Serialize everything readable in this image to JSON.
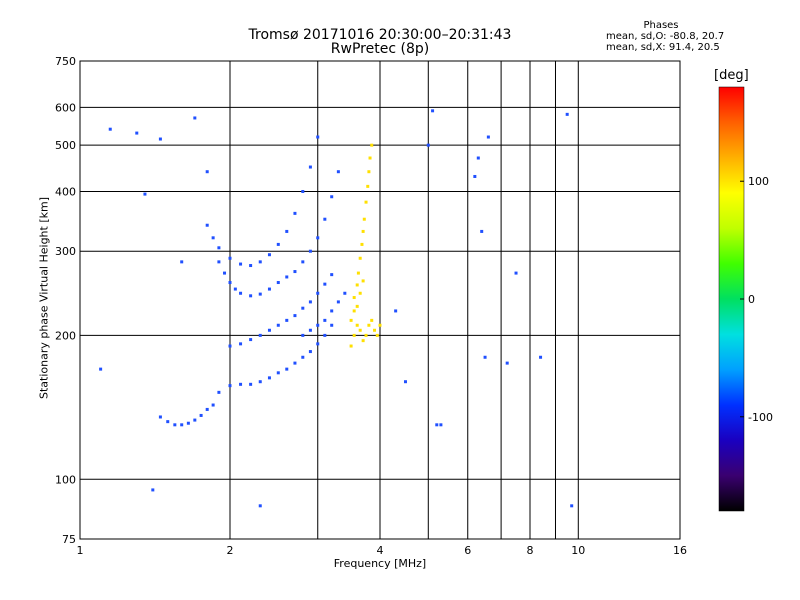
{
  "header": {
    "title": "Tromsø 20171016 20:30:00–20:31:43",
    "subtitle": "RwPretec (8p)"
  },
  "stats": {
    "label": "Phases",
    "line_o": "mean, sd,O: -80.8, 20.7",
    "line_x": "mean, sd,X:  91.4, 20.5"
  },
  "colorbar": {
    "unit": "[deg]",
    "ticks": [
      {
        "value": 100,
        "label": "100"
      },
      {
        "value": 0,
        "label": "0"
      },
      {
        "value": -100,
        "label": "-100"
      }
    ],
    "range": [
      -180,
      180
    ],
    "colors": [
      "#000000",
      "#3a0070",
      "#1a00c0",
      "#0030ff",
      "#00a0ff",
      "#00e0e0",
      "#00e060",
      "#40ff00",
      "#c0ff00",
      "#ffff00",
      "#ffb000",
      "#ff6000",
      "#ff0000"
    ]
  },
  "chart_data": {
    "type": "scatter",
    "title": "Tromsø 20171016 20:30:00–20:31:43",
    "subtitle": "RwPretec (8p)",
    "xlabel": "Frequency [MHz]",
    "ylabel": "Stationary phase Virtual Height [km]",
    "x_scale": "log",
    "y_scale": "log",
    "xlim": [
      1,
      16
    ],
    "ylim": [
      75,
      750
    ],
    "x_ticks": [
      1,
      2,
      4,
      6,
      8,
      10,
      16
    ],
    "x_tick_labels": [
      "1",
      "2",
      "4",
      "6",
      "8",
      "10",
      "16"
    ],
    "x_minor_ticks": [
      3,
      5,
      7,
      9
    ],
    "y_ticks": [
      75,
      100,
      200,
      300,
      400,
      500,
      600,
      750
    ],
    "y_tick_labels": [
      "75",
      "100",
      "200",
      "300",
      "400",
      "500",
      "600",
      "750"
    ],
    "grid": true,
    "color_scale": "phase [deg], -180 to 180",
    "series": [
      {
        "name": "O",
        "color": "#2050ff",
        "points": [
          [
            1.45,
            135
          ],
          [
            1.5,
            132
          ],
          [
            1.55,
            130
          ],
          [
            1.6,
            130
          ],
          [
            1.65,
            131
          ],
          [
            1.7,
            133
          ],
          [
            1.75,
            136
          ],
          [
            1.8,
            140
          ],
          [
            1.85,
            143
          ],
          [
            1.9,
            152
          ],
          [
            2.0,
            157
          ],
          [
            2.1,
            158
          ],
          [
            2.2,
            158
          ],
          [
            2.3,
            160
          ],
          [
            2.4,
            163
          ],
          [
            2.5,
            167
          ],
          [
            2.6,
            170
          ],
          [
            2.7,
            175
          ],
          [
            2.8,
            180
          ],
          [
            2.9,
            185
          ],
          [
            3.0,
            192
          ],
          [
            3.1,
            200
          ],
          [
            3.2,
            210
          ],
          [
            2.0,
            190
          ],
          [
            2.1,
            192
          ],
          [
            2.2,
            196
          ],
          [
            2.3,
            200
          ],
          [
            2.4,
            205
          ],
          [
            2.5,
            210
          ],
          [
            2.6,
            215
          ],
          [
            2.7,
            220
          ],
          [
            2.8,
            228
          ],
          [
            2.9,
            235
          ],
          [
            3.0,
            245
          ],
          [
            3.1,
            256
          ],
          [
            3.2,
            268
          ],
          [
            1.9,
            285
          ],
          [
            1.95,
            270
          ],
          [
            2.0,
            258
          ],
          [
            2.05,
            250
          ],
          [
            2.1,
            245
          ],
          [
            2.2,
            242
          ],
          [
            2.3,
            244
          ],
          [
            2.4,
            250
          ],
          [
            2.5,
            258
          ],
          [
            2.6,
            265
          ],
          [
            2.7,
            272
          ],
          [
            2.8,
            285
          ],
          [
            2.9,
            300
          ],
          [
            3.0,
            320
          ],
          [
            3.1,
            350
          ],
          [
            3.2,
            390
          ],
          [
            3.3,
            440
          ],
          [
            1.8,
            340
          ],
          [
            1.85,
            320
          ],
          [
            1.9,
            305
          ],
          [
            2.0,
            290
          ],
          [
            2.1,
            282
          ],
          [
            2.2,
            280
          ],
          [
            2.3,
            285
          ],
          [
            2.4,
            295
          ],
          [
            2.5,
            310
          ],
          [
            2.6,
            330
          ],
          [
            2.7,
            360
          ],
          [
            2.8,
            400
          ],
          [
            2.9,
            450
          ],
          [
            3.0,
            520
          ],
          [
            2.8,
            200
          ],
          [
            2.9,
            205
          ],
          [
            3.0,
            210
          ],
          [
            3.1,
            215
          ],
          [
            3.2,
            225
          ],
          [
            3.3,
            235
          ],
          [
            3.4,
            245
          ]
        ]
      },
      {
        "name": "X",
        "color": "#ffe000",
        "points": [
          [
            3.5,
            190
          ],
          [
            3.55,
            200
          ],
          [
            3.6,
            210
          ],
          [
            3.65,
            205
          ],
          [
            3.7,
            195
          ],
          [
            3.75,
            200
          ],
          [
            3.8,
            210
          ],
          [
            3.85,
            215
          ],
          [
            3.9,
            205
          ],
          [
            3.95,
            200
          ],
          [
            4.0,
            210
          ],
          [
            3.55,
            240
          ],
          [
            3.6,
            255
          ],
          [
            3.62,
            270
          ],
          [
            3.65,
            290
          ],
          [
            3.68,
            310
          ],
          [
            3.7,
            330
          ],
          [
            3.72,
            350
          ],
          [
            3.75,
            380
          ],
          [
            3.78,
            410
          ],
          [
            3.8,
            440
          ],
          [
            3.82,
            470
          ],
          [
            3.85,
            500
          ],
          [
            3.6,
            230
          ],
          [
            3.65,
            245
          ],
          [
            3.7,
            260
          ],
          [
            3.5,
            215
          ],
          [
            3.55,
            225
          ]
        ]
      },
      {
        "name": "scattered",
        "color": "#2050ff",
        "points": [
          [
            1.1,
            170
          ],
          [
            1.15,
            540
          ],
          [
            1.3,
            530
          ],
          [
            1.35,
            395
          ],
          [
            1.4,
            95
          ],
          [
            1.45,
            515
          ],
          [
            1.6,
            285
          ],
          [
            1.7,
            570
          ],
          [
            1.8,
            440
          ],
          [
            2.3,
            88
          ],
          [
            4.3,
            225
          ],
          [
            4.5,
            160
          ],
          [
            5.0,
            500
          ],
          [
            5.1,
            590
          ],
          [
            5.2,
            130
          ],
          [
            5.3,
            130
          ],
          [
            6.3,
            470
          ],
          [
            6.2,
            430
          ],
          [
            6.4,
            330
          ],
          [
            6.5,
            180
          ],
          [
            6.6,
            520
          ],
          [
            7.2,
            175
          ],
          [
            7.5,
            270
          ],
          [
            8.4,
            180
          ],
          [
            9.5,
            580
          ],
          [
            9.7,
            88
          ]
        ]
      }
    ]
  }
}
